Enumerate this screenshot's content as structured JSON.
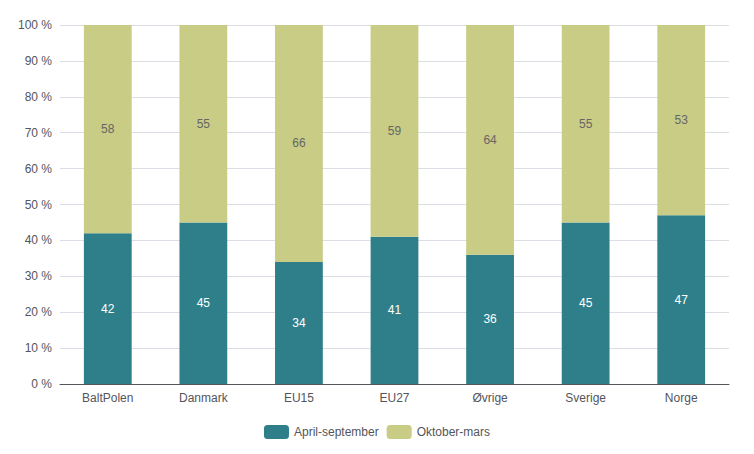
{
  "chart_data": {
    "type": "bar",
    "stacked": true,
    "categories": [
      "BaltPolen",
      "Danmark",
      "EU15",
      "EU27",
      "Øvrige",
      "Sverige",
      "Norge"
    ],
    "series": [
      {
        "name": "April-september",
        "color": "#2e7f8a",
        "values": [
          42,
          45,
          34,
          41,
          36,
          45,
          47
        ]
      },
      {
        "name": "Oktober-mars",
        "color": "#c8cc85",
        "values": [
          58,
          55,
          66,
          59,
          64,
          55,
          53
        ]
      }
    ],
    "ylim": [
      0,
      100
    ],
    "yticks": [
      {
        "value": 0,
        "label": "0 %"
      },
      {
        "value": 10,
        "label": "10 %"
      },
      {
        "value": 20,
        "label": "20 %"
      },
      {
        "value": 30,
        "label": "30 %"
      },
      {
        "value": 40,
        "label": "40 %"
      },
      {
        "value": 50,
        "label": "50 %"
      },
      {
        "value": 60,
        "label": "60 %"
      },
      {
        "value": 70,
        "label": "70 %"
      },
      {
        "value": 80,
        "label": "80 %"
      },
      {
        "value": 90,
        "label": "90 %"
      },
      {
        "value": 100,
        "label": "100 %"
      }
    ],
    "grid": true,
    "legend": "bottom",
    "data_labels": true
  }
}
